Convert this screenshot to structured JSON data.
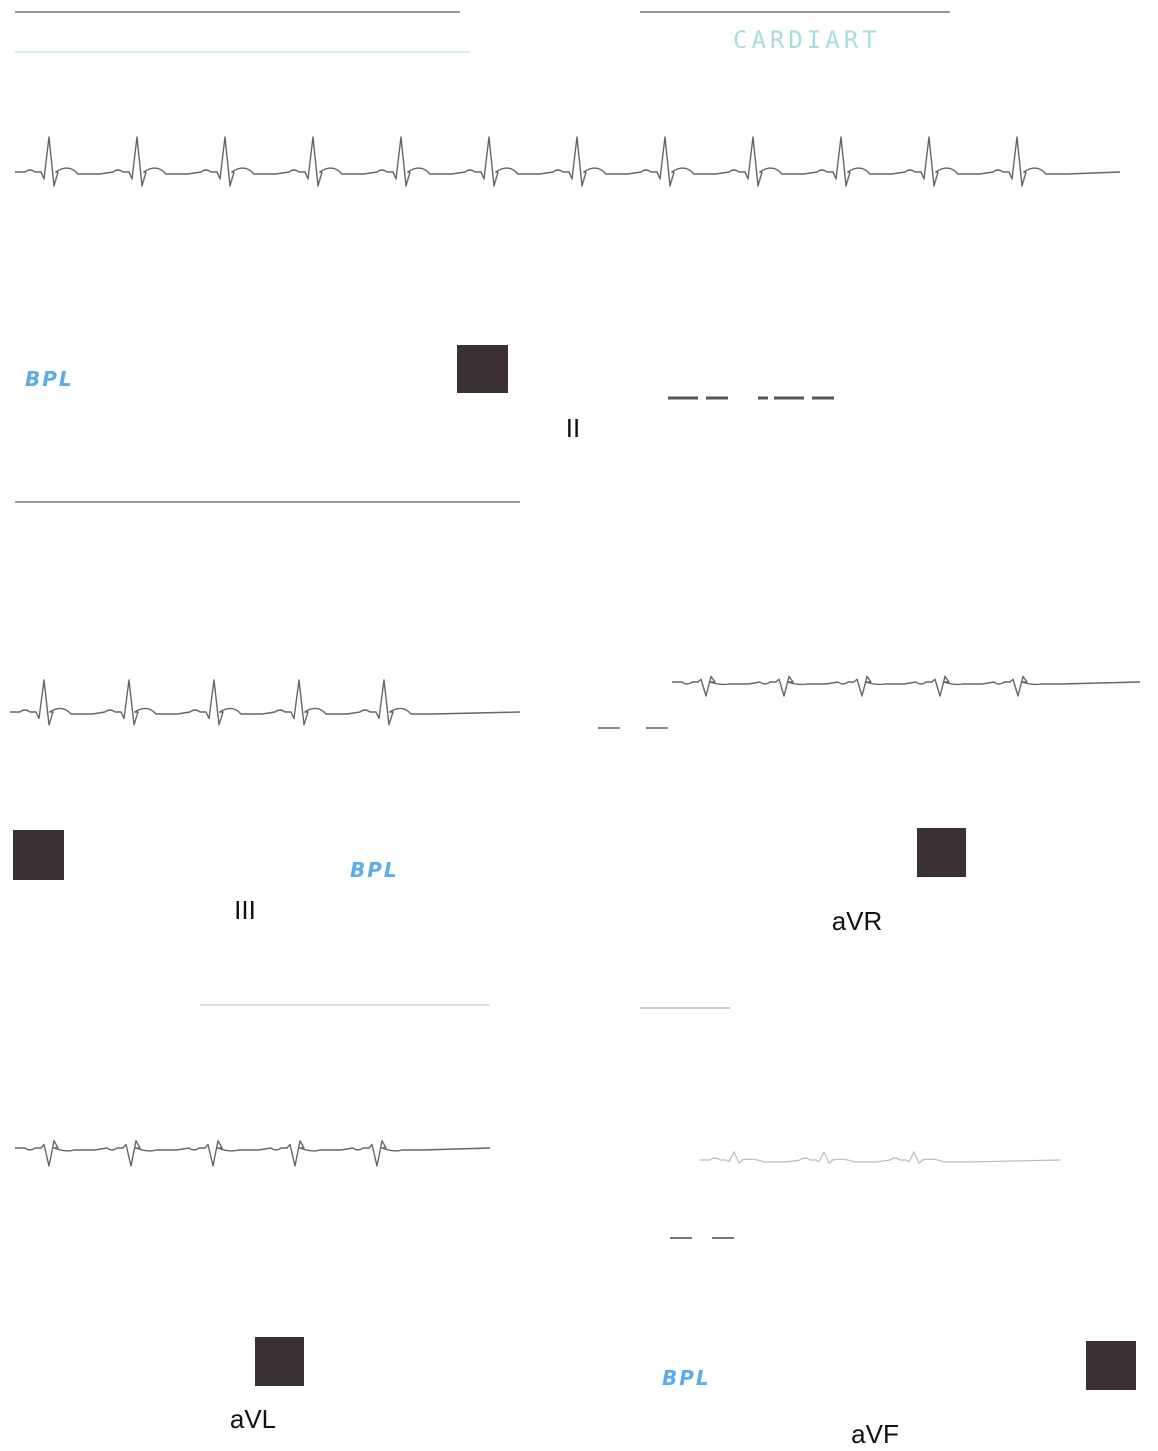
{
  "header": {
    "brand": "CARDIART"
  },
  "leads": [
    {
      "label": "II"
    },
    {
      "label": "III"
    },
    {
      "label": "aVR"
    },
    {
      "label": "aVL"
    },
    {
      "label": "aVF"
    }
  ],
  "brand_marks": [
    "BPL",
    "BPL",
    "BPL"
  ]
}
